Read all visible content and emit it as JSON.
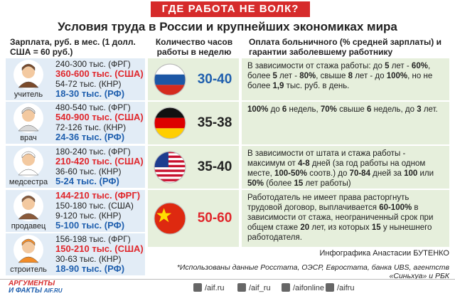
{
  "header": {
    "banner": "ГДЕ РАБОТА НЕ ВОЛК?",
    "title": "Условия труда в России и крупнейших экономиках мира"
  },
  "columns": {
    "salary": "Зарплата, руб. в мес. (1 долл. США = 60 руб.)",
    "hours": "Количество часов работы в неделю",
    "sick_pay": "Оплата больничного (% средней зарплаты) и гарантии заболевшему работнику"
  },
  "professions": [
    {
      "label": "учитель",
      "salaries": [
        {
          "text": "240-300 тыс. (ФРГ)",
          "color": "#222222"
        },
        {
          "text": "360-600 тыс. (США)",
          "color": "#e0262b"
        },
        {
          "text": "54-72 тыс. (КНР)",
          "color": "#222222"
        },
        {
          "text": "18-30 тыс. (РФ)",
          "color": "#1f5fae"
        }
      ]
    },
    {
      "label": "врач",
      "salaries": [
        {
          "text": "480-540 тыс. (ФРГ)",
          "color": "#222222"
        },
        {
          "text": "540-900 тыс. (США)",
          "color": "#e0262b"
        },
        {
          "text": "72-126 тыс. (КНР)",
          "color": "#222222"
        },
        {
          "text": "24-36 тыс. (РФ)",
          "color": "#1f5fae"
        }
      ]
    },
    {
      "label": "медсестра",
      "salaries": [
        {
          "text": "180-240 тыс. (ФРГ)",
          "color": "#222222"
        },
        {
          "text": "210-420 тыс. (США)",
          "color": "#e0262b"
        },
        {
          "text": "36-60 тыс. (КНР)",
          "color": "#222222"
        },
        {
          "text": "5-24 тыс. (РФ)",
          "color": "#1f5fae"
        }
      ]
    },
    {
      "label": "продавец",
      "salaries": [
        {
          "text": "144-210 тыс. (ФРГ)",
          "color": "#e0262b"
        },
        {
          "text": "150-180 тыс. (США)",
          "color": "#222222"
        },
        {
          "text": "9-120 тыс. (КНР)",
          "color": "#222222"
        },
        {
          "text": "5-100 тыс. (РФ)",
          "color": "#1f5fae"
        }
      ]
    },
    {
      "label": "строитель",
      "salaries": [
        {
          "text": "156-198 тыс. (ФРГ)",
          "color": "#222222"
        },
        {
          "text": "150-210 тыс. (США)",
          "color": "#e0262b"
        },
        {
          "text": "30-63 тыс. (КНР)",
          "color": "#222222"
        },
        {
          "text": "18-90 тыс. (РФ)",
          "color": "#1f5fae"
        }
      ]
    }
  ],
  "countries": [
    {
      "hours": "30-40",
      "color": "#1f5fae",
      "sick_pay": [
        "В зависимости от стажа работы: до ",
        {
          "bold": "5"
        },
        " лет - ",
        {
          "bold": "60%"
        },
        ", более ",
        {
          "bold": "5"
        },
        " лет - ",
        {
          "bold": "80%"
        },
        ", свыше ",
        {
          "bold": "8"
        },
        " лет - до ",
        {
          "bold": "100%"
        },
        ", но не более ",
        {
          "bold": "1,9"
        },
        " тыс. руб. в день."
      ]
    },
    {
      "hours": "35-38",
      "color": "#222222",
      "sick_pay": [
        {
          "bold": "100%"
        },
        " до ",
        {
          "bold": "6"
        },
        " недель, ",
        {
          "bold": "70%"
        },
        " свыше ",
        {
          "bold": "6"
        },
        " недель, до ",
        {
          "bold": "3"
        },
        " лет."
      ]
    },
    {
      "hours": "35-40",
      "color": "#222222",
      "sick_pay": [
        "В зависимости от штата и стажа работы - максимум от ",
        {
          "bold": "4-8"
        },
        " дней (за год работы на одном месте, ",
        {
          "bold": "100-50%"
        },
        " соотв.) до ",
        {
          "bold": "70-84"
        },
        " дней за ",
        {
          "bold": "100"
        },
        " или ",
        {
          "bold": "50%"
        },
        " (более ",
        {
          "bold": "15"
        },
        " лет работы)"
      ]
    },
    {
      "hours": "50-60",
      "color": "#e0262b",
      "sick_pay": [
        "Работодатель не имеет права расторгнуть трудовой договор, выплачивается ",
        {
          "bold": "60-100%"
        },
        " в зависимости от стажа, неограниченный срок при общем стаже ",
        {
          "bold": "20"
        },
        " лет, из которых ",
        {
          "bold": "15"
        },
        " у нынешнего работодателя."
      ]
    }
  ],
  "credit": "Инфографика Анастасии БУТЕНКО",
  "footnote": "*Использованы данные Росстата, ОЭСР, Евростата, банка UBS, агентств «Синьхуа» и РБК",
  "footer": {
    "logo_top": "АРГУМЕНТЫ",
    "logo_bottom": "И ФАКТЫ",
    "logo_site": "AIF.RU",
    "links": [
      "/aif.ru",
      "/aif_ru",
      "/aifonline",
      "/aifru"
    ]
  }
}
